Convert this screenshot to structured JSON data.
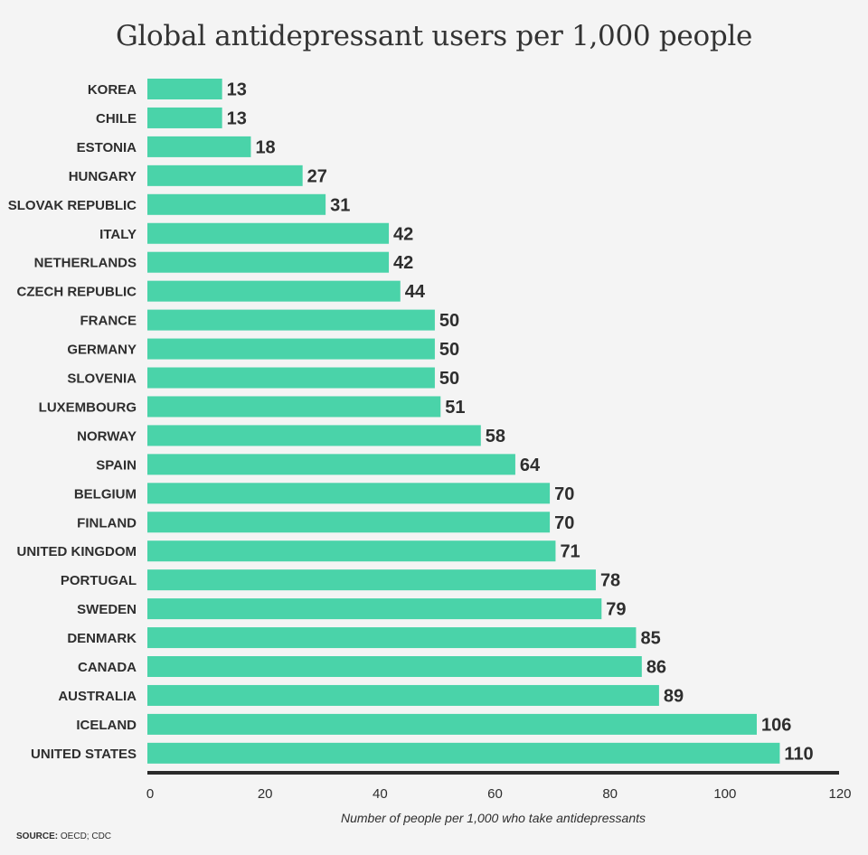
{
  "chart_data": {
    "type": "bar",
    "orientation": "horizontal",
    "title": "Global antidepressant users per 1,000 people",
    "xlabel": "Number of people per 1,000 who take antidepressants",
    "ylabel": "",
    "categories": [
      "KOREA",
      "CHILE",
      "ESTONIA",
      "HUNGARY",
      "SLOVAK REPUBLIC",
      "ITALY",
      "NETHERLANDS",
      "CZECH REPUBLIC",
      "FRANCE",
      "GERMANY",
      "SLOVENIA",
      "LUXEMBOURG",
      "NORWAY",
      "SPAIN",
      "BELGIUM",
      "FINLAND",
      "UNITED KINGDOM",
      "PORTUGAL",
      "SWEDEN",
      "DENMARK",
      "CANADA",
      "AUSTRALIA",
      "ICELAND",
      "UNITED STATES"
    ],
    "values": [
      13,
      13,
      18,
      27,
      31,
      42,
      42,
      44,
      50,
      50,
      50,
      51,
      58,
      64,
      70,
      70,
      71,
      78,
      79,
      85,
      86,
      89,
      106,
      110
    ],
    "xlim": [
      0,
      120
    ],
    "xticks": [
      0,
      20,
      40,
      60,
      80,
      100,
      120
    ],
    "grid": false,
    "bar_color": "#4ad3a9",
    "source_label": "SOURCE:",
    "source_text": "OECD; CDC"
  }
}
